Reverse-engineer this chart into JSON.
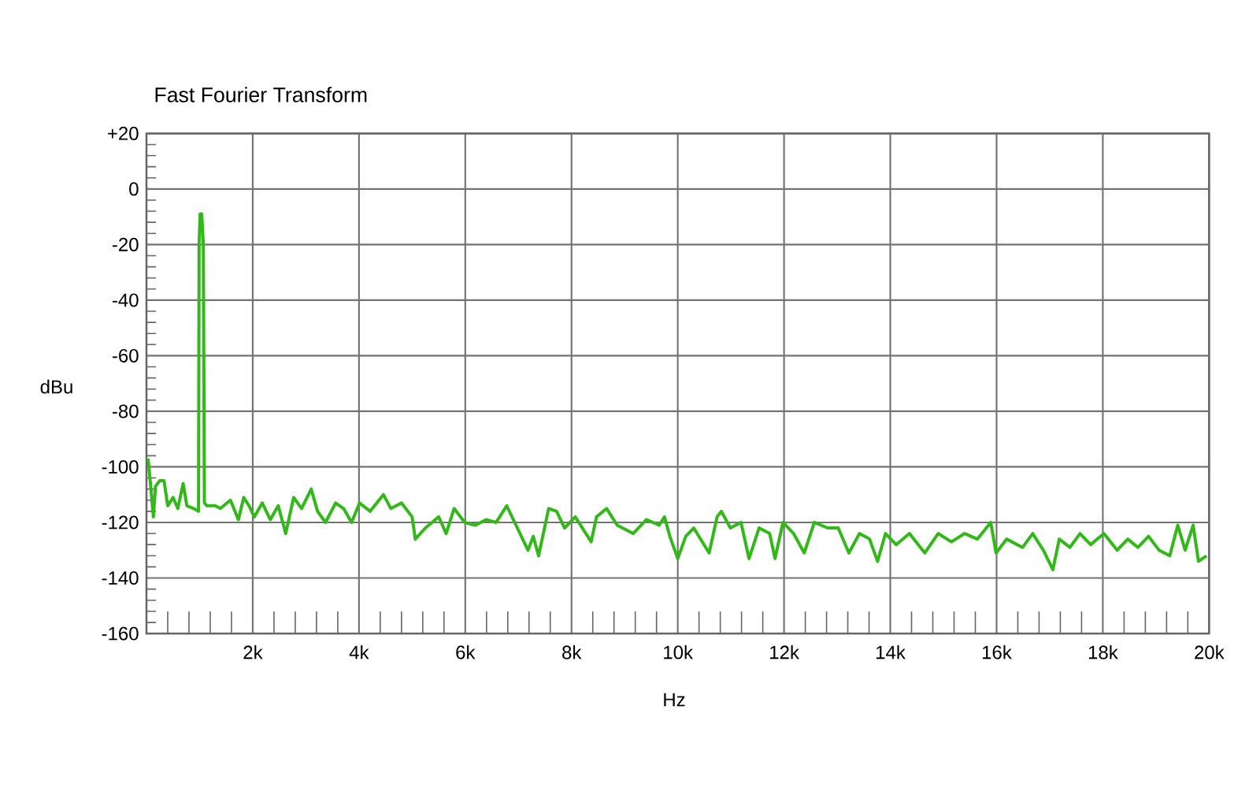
{
  "chart_data": {
    "type": "line",
    "title": "Fast Fourier Transform",
    "xlabel": "Hz",
    "ylabel": "dBu",
    "x": [
      30,
      70,
      130,
      170,
      250,
      330,
      400,
      500,
      590,
      690,
      760,
      890,
      980,
      990,
      1010,
      1040,
      1070,
      1090,
      1140,
      1290,
      1390,
      1580,
      1730,
      1830,
      1930,
      2030,
      2180,
      2330,
      2480,
      2620,
      2770,
      2920,
      3100,
      3220,
      3370,
      3560,
      3710,
      3860,
      4010,
      4210,
      4460,
      4600,
      4800,
      5000,
      5060,
      5250,
      5500,
      5640,
      5790,
      5990,
      6190,
      6390,
      6580,
      6780,
      6980,
      7180,
      7280,
      7380,
      7570,
      7720,
      7870,
      8070,
      8370,
      8470,
      8660,
      8860,
      9160,
      9410,
      9650,
      9750,
      9850,
      10000,
      10150,
      10300,
      10590,
      10740,
      10820,
      10990,
      11190,
      11340,
      11530,
      11730,
      11830,
      11980,
      12180,
      12380,
      12570,
      12820,
      13020,
      13220,
      13420,
      13610,
      13760,
      13910,
      14110,
      14360,
      14650,
      14900,
      15150,
      15400,
      15640,
      15890,
      15990,
      16190,
      16490,
      16680,
      16880,
      17060,
      17180,
      17380,
      17570,
      17770,
      18020,
      18270,
      18470,
      18660,
      18860,
      19060,
      19260,
      19410,
      19550,
      19700,
      19800,
      19950
    ],
    "series": [
      {
        "color": "#33b81a",
        "values": [
          -97,
          -105,
          -118,
          -107,
          -105,
          -105,
          -114,
          -111,
          -115,
          -106,
          -114,
          -115,
          -116,
          -20,
          -9,
          -9,
          -20,
          -113,
          -114,
          -114,
          -115,
          -112,
          -119,
          -111,
          -114,
          -118,
          -113,
          -119,
          -114,
          -124,
          -111,
          -115,
          -108,
          -116,
          -120,
          -113,
          -115,
          -120,
          -113,
          -116,
          -110,
          -115,
          -113,
          -118,
          -126,
          -122,
          -118,
          -124,
          -115,
          -120,
          -121,
          -119,
          -120,
          -114,
          -122,
          -130,
          -125,
          -132,
          -115,
          -116,
          -122,
          -118,
          -127,
          -118,
          -115,
          -121,
          -124,
          -119,
          -121,
          -118,
          -125,
          -133,
          -125,
          -122,
          -131,
          -118,
          -116,
          -122,
          -120,
          -133,
          -122,
          -124,
          -133,
          -120,
          -124,
          -131,
          -120,
          -122,
          -122,
          -131,
          -124,
          -126,
          -134,
          -124,
          -128,
          -124,
          -131,
          -124,
          -127,
          -124,
          -126,
          -120,
          -131,
          -126,
          -129,
          -124,
          -130,
          -137,
          -126,
          -129,
          -124,
          -128,
          -124,
          -130,
          -126,
          -129,
          -125,
          -130,
          -132,
          -121,
          -130,
          -121,
          -134,
          -132
        ]
      }
    ],
    "xlim": [
      0,
      20000
    ],
    "xticks": [
      {
        "value": 0,
        "label": null
      },
      {
        "value": 2000,
        "label": "2k"
      },
      {
        "value": 4000,
        "label": "4k"
      },
      {
        "value": 6000,
        "label": "6k"
      },
      {
        "value": 8000,
        "label": "8k"
      },
      {
        "value": 10000,
        "label": "10k"
      },
      {
        "value": 12000,
        "label": "12k"
      },
      {
        "value": 14000,
        "label": "14k"
      },
      {
        "value": 16000,
        "label": "16k"
      },
      {
        "value": 18000,
        "label": "18k"
      },
      {
        "value": 20000,
        "label": "20k"
      }
    ],
    "ylim": [
      -160,
      20
    ],
    "yticks": [
      {
        "value": 20,
        "label": "+20"
      },
      0,
      -20,
      -40,
      -60,
      -80,
      -100,
      -120,
      -140,
      -160
    ],
    "grid": true,
    "marker": "none",
    "line_style": "solid"
  }
}
